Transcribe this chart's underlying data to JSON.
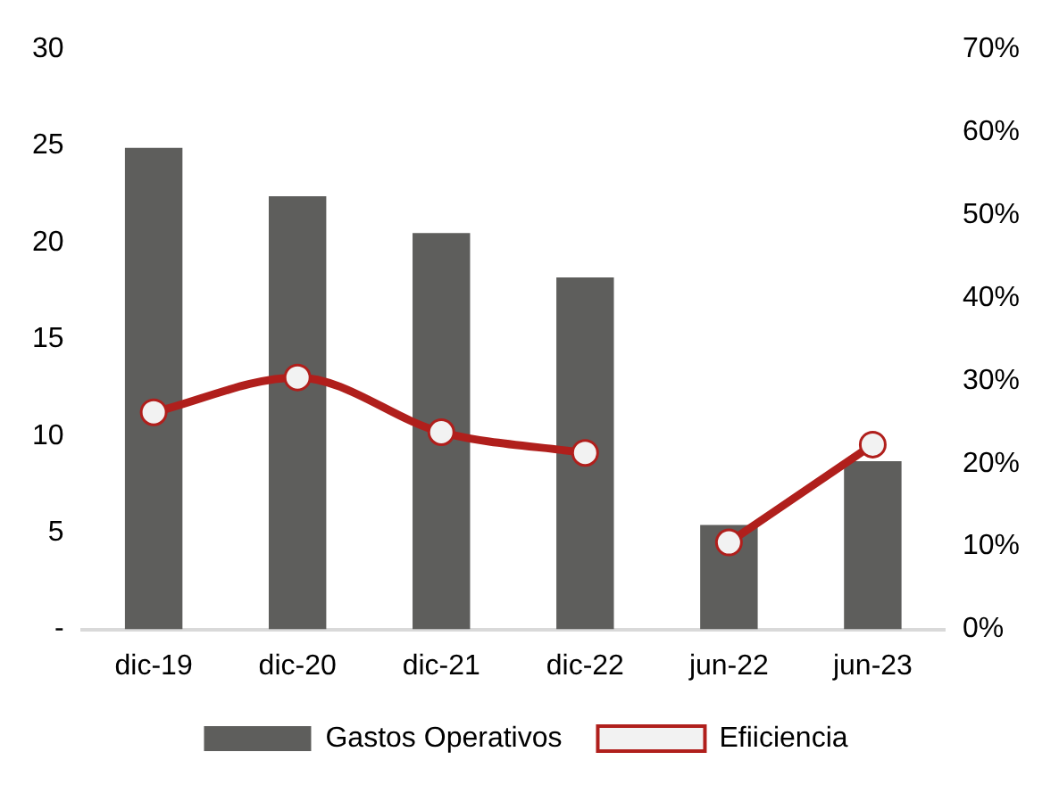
{
  "chart_data": {
    "type": "bar",
    "categories": [
      "dic-19",
      "dic-20",
      "dic-21",
      "dic-22",
      "jun-22",
      "jun-23"
    ],
    "series": [
      {
        "name": "Gastos Operativos",
        "color": "#5e5e5c",
        "values": [
          24.9,
          22.4,
          20.5,
          18.2,
          5.4,
          8.7
        ]
      },
      {
        "name": "Efiiciencia",
        "type": "line",
        "axis": "y2",
        "color": "#b01f1c",
        "marker": "circle",
        "values": [
          26.2,
          30.4,
          23.8,
          21.3,
          null,
          null
        ]
      },
      {
        "type": "line",
        "axis": "y2",
        "color": "#b01f1c",
        "marker": "circle",
        "values": [
          null,
          null,
          null,
          null,
          10.5,
          22.3
        ]
      }
    ],
    "ylim": [
      0,
      30
    ],
    "yticks": [
      {
        "value": 0,
        "label": "-"
      },
      5,
      10,
      15,
      20,
      25,
      30
    ],
    "y2lim": [
      0,
      70
    ],
    "y2ticks": [
      {
        "value": 0,
        "label": "0%"
      },
      {
        "value": 10,
        "label": "10%"
      },
      {
        "value": 20,
        "label": "20%"
      },
      {
        "value": 30,
        "label": "30%"
      },
      {
        "value": 40,
        "label": "40%"
      },
      {
        "value": 50,
        "label": "50%"
      },
      {
        "value": 60,
        "label": "60%"
      },
      {
        "value": 70,
        "label": "70%"
      }
    ],
    "grid": false,
    "legend": "bottom"
  }
}
